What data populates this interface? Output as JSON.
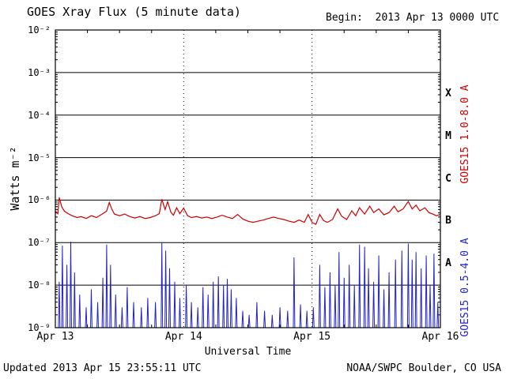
{
  "footer": {
    "updated": "Updated 2013 Apr 15 23:55:11 UTC",
    "credit": "NOAA/SWPC Boulder, CO USA"
  },
  "colors": {
    "axis": "#000000",
    "background": "#ffffff",
    "long_channel": "#cc0000",
    "short_channel": "#2222cc"
  },
  "chart_data": {
    "type": "line",
    "title": "GOES Xray Flux (5 minute data)",
    "begin_label": "Begin:  2013 Apr 13 0000 UTC",
    "xlabel": "Universal Time",
    "ylabel": "Watts m⁻²",
    "x_axis": {
      "span_days": 3,
      "ticks": [
        {
          "label": "Apr 13",
          "t": 0
        },
        {
          "label": "Apr 14",
          "t": 1
        },
        {
          "label": "Apr 15",
          "t": 2
        },
        {
          "label": "Apr 16",
          "t": 3
        }
      ],
      "day_boundary_lines_t": [
        1,
        2
      ]
    },
    "y_axis": {
      "scale": "log",
      "min": 1e-09,
      "max": 0.01,
      "ticks": [
        {
          "label": "10⁻²",
          "exponent": -2
        },
        {
          "label": "10⁻³",
          "exponent": -3
        },
        {
          "label": "10⁻⁴",
          "exponent": -4
        },
        {
          "label": "10⁻⁵",
          "exponent": -5
        },
        {
          "label": "10⁻⁶",
          "exponent": -6
        },
        {
          "label": "10⁻⁷",
          "exponent": -7
        },
        {
          "label": "10⁻⁸",
          "exponent": -8
        },
        {
          "label": "10⁻⁹",
          "exponent": -9
        }
      ]
    },
    "flare_classes": [
      {
        "label": "X",
        "mid_exponent": -3.5
      },
      {
        "label": "M",
        "mid_exponent": -4.5
      },
      {
        "label": "C",
        "mid_exponent": -5.5
      },
      {
        "label": "B",
        "mid_exponent": -6.5
      },
      {
        "label": "A",
        "mid_exponent": -7.5
      }
    ],
    "series": [
      {
        "name": "GOES15 1.0-8.0 A",
        "color": "#cc0000",
        "kind": "continuous",
        "points": [
          [
            0.0,
            5.5e-07
          ],
          [
            0.02,
            4.8e-07
          ],
          [
            0.03,
            1.15e-06
          ],
          [
            0.05,
            7e-07
          ],
          [
            0.07,
            5.5e-07
          ],
          [
            0.1,
            4.8e-07
          ],
          [
            0.13,
            4.3e-07
          ],
          [
            0.17,
            3.9e-07
          ],
          [
            0.2,
            4.1e-07
          ],
          [
            0.24,
            3.7e-07
          ],
          [
            0.28,
            4.3e-07
          ],
          [
            0.32,
            3.9e-07
          ],
          [
            0.36,
            4.6e-07
          ],
          [
            0.4,
            5.5e-07
          ],
          [
            0.42,
            8.8e-07
          ],
          [
            0.44,
            6.2e-07
          ],
          [
            0.46,
            4.7e-07
          ],
          [
            0.5,
            4.3e-07
          ],
          [
            0.54,
            4.7e-07
          ],
          [
            0.58,
            4.1e-07
          ],
          [
            0.62,
            3.8e-07
          ],
          [
            0.66,
            4.1e-07
          ],
          [
            0.7,
            3.7e-07
          ],
          [
            0.74,
            3.9e-07
          ],
          [
            0.78,
            4.3e-07
          ],
          [
            0.81,
            4.8e-07
          ],
          [
            0.83,
            1.05e-06
          ],
          [
            0.855,
            6e-07
          ],
          [
            0.875,
            9.2e-07
          ],
          [
            0.9,
            5.2e-07
          ],
          [
            0.92,
            4.4e-07
          ],
          [
            0.945,
            6.6e-07
          ],
          [
            0.97,
            4.8e-07
          ],
          [
            1.0,
            6.5e-07
          ],
          [
            1.03,
            4.3e-07
          ],
          [
            1.06,
            3.9e-07
          ],
          [
            1.1,
            4.1e-07
          ],
          [
            1.14,
            3.8e-07
          ],
          [
            1.18,
            4e-07
          ],
          [
            1.22,
            3.7e-07
          ],
          [
            1.26,
            4e-07
          ],
          [
            1.3,
            4.4e-07
          ],
          [
            1.34,
            4e-07
          ],
          [
            1.38,
            3.7e-07
          ],
          [
            1.42,
            4.6e-07
          ],
          [
            1.46,
            3.6e-07
          ],
          [
            1.5,
            3.2e-07
          ],
          [
            1.54,
            3e-07
          ],
          [
            1.58,
            3.2e-07
          ],
          [
            1.62,
            3.4e-07
          ],
          [
            1.66,
            3.7e-07
          ],
          [
            1.7,
            4e-07
          ],
          [
            1.74,
            3.7e-07
          ],
          [
            1.78,
            3.5e-07
          ],
          [
            1.82,
            3.2e-07
          ],
          [
            1.86,
            3e-07
          ],
          [
            1.9,
            3.4e-07
          ],
          [
            1.94,
            3e-07
          ],
          [
            1.97,
            4.6e-07
          ],
          [
            2.0,
            3e-07
          ],
          [
            2.03,
            2.7e-07
          ],
          [
            2.06,
            4.6e-07
          ],
          [
            2.09,
            3.3e-07
          ],
          [
            2.12,
            3e-07
          ],
          [
            2.16,
            3.5e-07
          ],
          [
            2.2,
            6.2e-07
          ],
          [
            2.23,
            4.2e-07
          ],
          [
            2.27,
            3.5e-07
          ],
          [
            2.31,
            5.6e-07
          ],
          [
            2.34,
            4.3e-07
          ],
          [
            2.37,
            6.6e-07
          ],
          [
            2.41,
            4.7e-07
          ],
          [
            2.45,
            7.2e-07
          ],
          [
            2.48,
            5.1e-07
          ],
          [
            2.52,
            6.2e-07
          ],
          [
            2.56,
            4.5e-07
          ],
          [
            2.6,
            5.1e-07
          ],
          [
            2.64,
            7.2e-07
          ],
          [
            2.67,
            5.3e-07
          ],
          [
            2.71,
            6.2e-07
          ],
          [
            2.75,
            9.3e-07
          ],
          [
            2.78,
            6.2e-07
          ],
          [
            2.81,
            7.6e-07
          ],
          [
            2.84,
            5.6e-07
          ],
          [
            2.88,
            6.6e-07
          ],
          [
            2.91,
            5.1e-07
          ],
          [
            2.94,
            4.7e-07
          ],
          [
            2.97,
            4.3e-07
          ],
          [
            3.0,
            4.6e-07
          ]
        ]
      },
      {
        "name": "GOES15 0.5-4.0 A",
        "color": "#2222cc",
        "kind": "baseline_spikes",
        "baseline": 1e-09,
        "spike_halfwidth_days": 0.006,
        "spikes": [
          [
            0.03,
            1.2e-08
          ],
          [
            0.055,
            8.5e-08
          ],
          [
            0.09,
            3e-08
          ],
          [
            0.12,
            1.05e-07
          ],
          [
            0.15,
            2e-08
          ],
          [
            0.19,
            6e-09
          ],
          [
            0.24,
            3e-09
          ],
          [
            0.28,
            8e-09
          ],
          [
            0.33,
            4e-09
          ],
          [
            0.37,
            1.5e-08
          ],
          [
            0.4,
            9e-08
          ],
          [
            0.43,
            3e-08
          ],
          [
            0.47,
            6e-09
          ],
          [
            0.52,
            3e-09
          ],
          [
            0.56,
            9e-09
          ],
          [
            0.61,
            4e-09
          ],
          [
            0.67,
            3e-09
          ],
          [
            0.72,
            5e-09
          ],
          [
            0.78,
            4e-09
          ],
          [
            0.83,
            1e-07
          ],
          [
            0.86,
            6.5e-08
          ],
          [
            0.89,
            2.5e-08
          ],
          [
            0.93,
            1.2e-08
          ],
          [
            0.97,
            5e-09
          ],
          [
            1.02,
            1e-08
          ],
          [
            1.06,
            4e-09
          ],
          [
            1.11,
            3e-09
          ],
          [
            1.15,
            9e-09
          ],
          [
            1.19,
            6e-09
          ],
          [
            1.23,
            1.2e-08
          ],
          [
            1.27,
            1.6e-08
          ],
          [
            1.31,
            1e-08
          ],
          [
            1.34,
            1.4e-08
          ],
          [
            1.37,
            8e-09
          ],
          [
            1.41,
            5e-09
          ],
          [
            1.46,
            2.5e-09
          ],
          [
            1.51,
            2e-09
          ],
          [
            1.57,
            4e-09
          ],
          [
            1.63,
            2.5e-09
          ],
          [
            1.69,
            2e-09
          ],
          [
            1.75,
            3e-09
          ],
          [
            1.81,
            2.5e-09
          ],
          [
            1.86,
            4.5e-08
          ],
          [
            1.91,
            3.5e-09
          ],
          [
            1.96,
            2.5e-09
          ],
          [
            2.01,
            3e-09
          ],
          [
            2.06,
            3e-08
          ],
          [
            2.1,
            9e-09
          ],
          [
            2.14,
            2e-08
          ],
          [
            2.18,
            1e-08
          ],
          [
            2.21,
            6e-08
          ],
          [
            2.25,
            1.5e-08
          ],
          [
            2.29,
            3e-08
          ],
          [
            2.33,
            1e-08
          ],
          [
            2.37,
            9e-08
          ],
          [
            2.41,
            8e-08
          ],
          [
            2.44,
            2.5e-08
          ],
          [
            2.48,
            1.2e-08
          ],
          [
            2.52,
            5e-08
          ],
          [
            2.56,
            8e-09
          ],
          [
            2.6,
            2e-08
          ],
          [
            2.65,
            4e-08
          ],
          [
            2.7,
            6.5e-08
          ],
          [
            2.75,
            9.5e-08
          ],
          [
            2.78,
            4e-08
          ],
          [
            2.81,
            6e-08
          ],
          [
            2.85,
            2.5e-08
          ],
          [
            2.89,
            5e-08
          ],
          [
            2.92,
            1e-08
          ],
          [
            2.95,
            5.5e-08
          ],
          [
            2.98,
            4e-09
          ]
        ]
      }
    ]
  }
}
